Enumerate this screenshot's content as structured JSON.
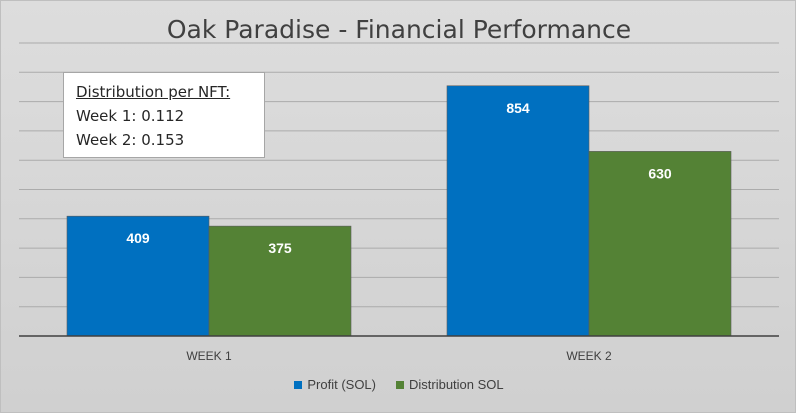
{
  "chart_data": {
    "type": "bar",
    "title": "Oak Paradise - Financial Performance",
    "categories": [
      "WEEK 1",
      "WEEK 2"
    ],
    "series": [
      {
        "name": "Profit (SOL)",
        "values": [
          409,
          854
        ],
        "color": "#0070c0"
      },
      {
        "name": "Distribution SOL",
        "values": [
          375,
          630
        ],
        "color": "#548235"
      }
    ],
    "ylim": [
      0,
      1000
    ],
    "grid": true,
    "legend_position": "bottom",
    "annotation": {
      "heading": "Distribution per NFT:",
      "lines": [
        "Week 1: 0.112",
        "Week 2: 0.153"
      ]
    }
  }
}
